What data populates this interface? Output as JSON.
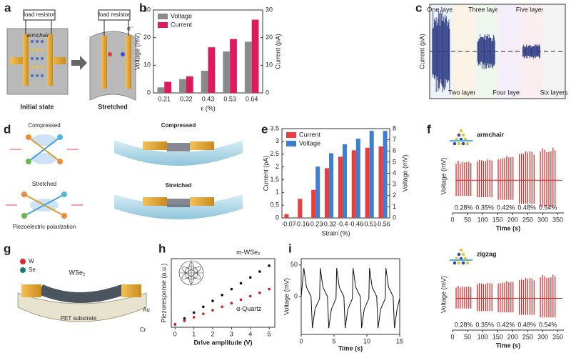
{
  "panels": {
    "letters": [
      "a",
      "b",
      "c",
      "d",
      "e",
      "f",
      "g",
      "h",
      "i"
    ]
  },
  "a": {
    "left_label": "load resistor",
    "right_label": "load resistor",
    "armchair": "armchair",
    "electron": "e⁻",
    "initial": "Initial state",
    "stretched": "Stretched"
  },
  "d": {
    "compressed_left": "Compressed",
    "stretched_left": "Stretched",
    "compressed_right": "Compressed",
    "stretched_right": "Stretched",
    "polarization": "Piezoelectric polarization"
  },
  "g": {
    "w": "W",
    "se": "Se",
    "material": "WSe₂",
    "substrate": "PET substrate",
    "au": "Au",
    "cr": "Cr"
  },
  "chart_data": [
    {
      "type": "bar",
      "xlabel": "ε (%)",
      "ylabel": "Voltage (mV)",
      "y2label": "Current (pA)",
      "categories": [
        "0.21",
        "0.32",
        "0.43",
        "0.53",
        "0.64"
      ],
      "series": [
        {
          "name": "Voltage",
          "color": "#8a8a8a",
          "values": [
            2,
            5,
            8,
            15,
            18.5
          ]
        },
        {
          "name": "Current",
          "color": "#e0195e",
          "values": [
            4,
            6,
            16.5,
            19.5,
            26.5
          ],
          "axis": "y2"
        }
      ],
      "ylim": [
        0,
        30
      ],
      "yticks": [
        0,
        10,
        20,
        30
      ],
      "y2lim": [
        0,
        30
      ],
      "y2ticks": [
        0,
        10,
        20,
        30
      ],
      "y_axis_color": "#333333",
      "y2_axis_color": "#c8104f"
    },
    {
      "type": "traces",
      "ylabel": "Current (pA)",
      "categories": [
        "One layer",
        "Two layers",
        "Three layers",
        "Four layers",
        "Five layers",
        "Six layers"
      ],
      "values": [
        28,
        0,
        12,
        0,
        5,
        0
      ],
      "ylim": [
        -32,
        32
      ],
      "color": "#2f3e86"
    },
    {
      "type": "bar",
      "xlabel": "Strain (%)",
      "ylabel": "Current (pA)",
      "y2label": "Voltage (mV)",
      "categories": [
        "-0.07",
        "-0.16",
        "-0.23",
        "-0.32",
        "-0.4",
        "-0.46",
        "-0.51",
        "-0.56"
      ],
      "series": [
        {
          "name": "Current",
          "color": "#ef3b3b",
          "values": [
            0.15,
            0.75,
            1.1,
            1.95,
            2.4,
            2.65,
            2.75,
            2.8
          ]
        },
        {
          "name": "Voltage",
          "color": "#3d7fd0",
          "values": [
            null,
            null,
            4.6,
            5.8,
            6.6,
            7.1,
            7.8,
            7.8
          ],
          "axis": "y2"
        }
      ],
      "ylim": [
        0,
        3.5
      ],
      "yticks": [
        0,
        0.5,
        1,
        1.5,
        2,
        2.5,
        3,
        3.5
      ],
      "y2lim": [
        0,
        8
      ],
      "y2ticks": [
        0,
        1,
        2,
        3,
        4,
        5,
        6,
        7,
        8
      ],
      "y_axis_color": "#e02424",
      "y2_axis_color": "#2f6fc2"
    },
    {
      "type": "spikes",
      "label": "armchair",
      "xlabel": "Time (s)",
      "ylabel": "Voltage (mV)",
      "categories": [
        "0.28%",
        "0.35%",
        "0.42%",
        "0.48%",
        "0.54%"
      ],
      "values": [
        12,
        13,
        15,
        18,
        20
      ],
      "xlim": [
        0,
        370
      ],
      "xticks": [
        0,
        50,
        100,
        150,
        200,
        250,
        300,
        350
      ],
      "ylim": [
        -20,
        25
      ],
      "color": "#e02424"
    },
    {
      "type": "spikes",
      "label": "zigzag",
      "xlabel": "Time (s)",
      "ylabel": "Voltage (mV)",
      "categories": [
        "0.28%",
        "0.35%",
        "0.42%",
        "0.48%",
        "0.54%"
      ],
      "values": [
        8,
        10,
        11,
        13,
        15
      ],
      "xlim": [
        0,
        370
      ],
      "xticks": [
        0,
        50,
        100,
        150,
        200,
        250,
        300,
        350
      ],
      "ylim": [
        -20,
        25
      ],
      "color": "#e02424"
    },
    {
      "type": "dots",
      "xlabel": "Drive amplitude (V)",
      "ylabel": "Piezoresponse (a.u.)",
      "x": [
        0,
        0.5,
        1,
        1.5,
        2,
        2.5,
        3,
        3.5,
        4,
        4.5,
        5
      ],
      "series": [
        {
          "name": "m-WSe₂",
          "color": "#111111",
          "values": [
            0,
            0.1,
            0.2,
            0.3,
            0.4,
            0.5,
            0.6,
            0.7,
            0.8,
            0.9,
            1.0
          ]
        },
        {
          "name": "α-Quartz",
          "color": "#d81b1b",
          "values": [
            0,
            0.06,
            0.12,
            0.18,
            0.24,
            0.3,
            0.36,
            0.42,
            0.48,
            0.54,
            0.6
          ]
        }
      ],
      "xlim": [
        -0.2,
        5.3
      ],
      "xticks": [
        0,
        1,
        2,
        3,
        4,
        5
      ],
      "ylim": [
        -0.05,
        1.12
      ]
    },
    {
      "type": "line",
      "xlabel": "Time (s)",
      "ylabel": "Voltage (mV)",
      "color": "#111111",
      "x": [
        0,
        0.4,
        0.8,
        1.5,
        1.7,
        2.1,
        2.8,
        2.9,
        3.3,
        4.0,
        4.2,
        4.6,
        5.3,
        5.4,
        5.8,
        6.5,
        6.7,
        7.1,
        7.8,
        7.9,
        8.3,
        9.0,
        9.2,
        9.6,
        10.3,
        10.4,
        10.8,
        11.5,
        11.7,
        12.1,
        12.8,
        12.9,
        13.3,
        14.0,
        14.2,
        14.6,
        15.0
      ],
      "values": [
        0,
        45,
        15,
        0,
        -50,
        -20,
        -3,
        45,
        15,
        0,
        -50,
        -20,
        -3,
        45,
        15,
        0,
        -50,
        -20,
        -3,
        45,
        15,
        0,
        -50,
        -20,
        -3,
        45,
        15,
        0,
        -50,
        -20,
        -3,
        45,
        15,
        0,
        -50,
        -20,
        -3
      ],
      "xlim": [
        0,
        15
      ],
      "xticks": [
        0,
        5,
        10,
        15
      ],
      "ylim": [
        -60,
        60
      ],
      "yticks": [
        0,
        50
      ]
    }
  ]
}
